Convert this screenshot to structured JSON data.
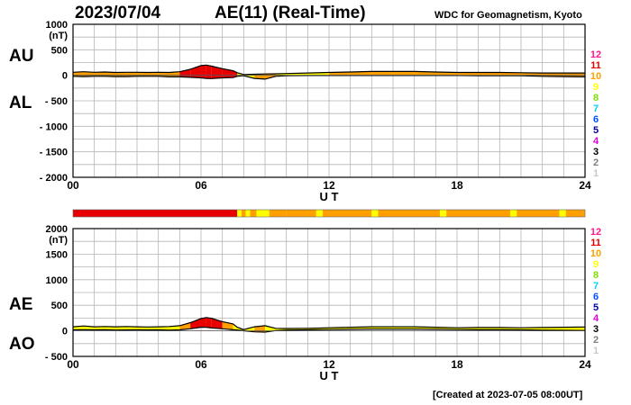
{
  "header": {
    "date": "2023/07/04",
    "title": "AE(11) (Real-Time)",
    "source": "WDC for Geomagnetism, Kyoto",
    "created": "[Created at 2023-07-05 08:00UT]"
  },
  "legend_levels": [
    {
      "label": "12",
      "color": "#ff1a8c"
    },
    {
      "label": "11",
      "color": "#e80000"
    },
    {
      "label": "10",
      "color": "#ffa000"
    },
    {
      "label": "9",
      "color": "#ffff00"
    },
    {
      "label": "8",
      "color": "#80e000"
    },
    {
      "label": "7",
      "color": "#00d0ff"
    },
    {
      "label": "6",
      "color": "#0050ff"
    },
    {
      "label": "5",
      "color": "#0000a0"
    },
    {
      "label": "4",
      "color": "#e000e0"
    },
    {
      "label": "3",
      "color": "#000000"
    },
    {
      "label": "2",
      "color": "#808080"
    },
    {
      "label": "1",
      "color": "#c8c8c8"
    }
  ],
  "chart_data": [
    {
      "type": "area",
      "panel": "AU/AL",
      "labels": {
        "upper": "AU",
        "lower": "AL"
      },
      "xlabel": "U T",
      "unit_label": "(nT)",
      "xlim": [
        0,
        24
      ],
      "ylim": [
        -2000,
        1000
      ],
      "x_ticks": [
        "00",
        "06",
        "12",
        "18",
        "24"
      ],
      "y_ticks": [
        "1000",
        "500",
        "0",
        "- 500",
        "- 1000",
        "- 1500",
        "- 2000"
      ],
      "grid": true,
      "hours": [
        0,
        0.5,
        1,
        1.5,
        2,
        2.5,
        3,
        3.5,
        4,
        4.5,
        5,
        5.5,
        6,
        6.25,
        6.5,
        7,
        7.5,
        7.7,
        8,
        8.5,
        9,
        9.5,
        10,
        11,
        12,
        13,
        14,
        15,
        16,
        17,
        18,
        19,
        20,
        21,
        22,
        23,
        24
      ],
      "series": [
        {
          "name": "AU",
          "values": [
            60,
            70,
            60,
            65,
            55,
            60,
            60,
            55,
            60,
            55,
            70,
            120,
            190,
            200,
            180,
            130,
            90,
            50,
            15,
            20,
            25,
            30,
            35,
            45,
            55,
            65,
            75,
            75,
            75,
            65,
            55,
            55,
            55,
            50,
            45,
            45,
            45
          ]
        },
        {
          "name": "AL",
          "values": [
            -20,
            -25,
            -20,
            -20,
            -25,
            -25,
            -20,
            -20,
            -20,
            -30,
            -30,
            -40,
            -50,
            -60,
            -65,
            -50,
            -45,
            -20,
            -10,
            -60,
            -75,
            -20,
            -10,
            -5,
            -5,
            -5,
            -5,
            -5,
            -5,
            -5,
            -5,
            -10,
            -10,
            -10,
            -20,
            -25,
            -30
          ]
        }
      ]
    },
    {
      "type": "area",
      "panel": "AE/AO",
      "labels": {
        "upper": "AE",
        "lower": "AO"
      },
      "xlabel": "U T",
      "unit_label": "(nT)",
      "xlim": [
        0,
        24
      ],
      "ylim": [
        -500,
        2000
      ],
      "x_ticks": [
        "00",
        "06",
        "12",
        "18",
        "24"
      ],
      "y_ticks": [
        "2000",
        "1500",
        "1000",
        "500",
        "0",
        "- 500"
      ],
      "grid": true,
      "hours": [
        0,
        0.5,
        1,
        1.5,
        2,
        2.5,
        3,
        3.5,
        4,
        4.5,
        5,
        5.5,
        6,
        6.25,
        6.5,
        7,
        7.5,
        7.7,
        8,
        8.5,
        9,
        9.5,
        10,
        11,
        12,
        13,
        14,
        15,
        16,
        17,
        18,
        19,
        20,
        21,
        22,
        23,
        24
      ],
      "series": [
        {
          "name": "AE",
          "values": [
            80,
            95,
            80,
            85,
            80,
            85,
            80,
            75,
            80,
            85,
            100,
            160,
            240,
            260,
            245,
            180,
            135,
            70,
            25,
            80,
            100,
            50,
            45,
            50,
            60,
            70,
            80,
            80,
            80,
            70,
            60,
            65,
            65,
            60,
            65,
            70,
            75
          ]
        },
        {
          "name": "AO",
          "values": [
            20,
            22,
            20,
            22,
            15,
            18,
            20,
            18,
            20,
            12,
            20,
            40,
            70,
            70,
            57,
            40,
            22,
            15,
            2,
            -20,
            -25,
            5,
            12,
            20,
            25,
            30,
            35,
            35,
            35,
            30,
            25,
            22,
            22,
            20,
            12,
            10,
            7
          ]
        }
      ]
    }
  ],
  "activity_strip": {
    "hours": [
      0,
      7.7,
      7.9,
      8.1,
      8.3,
      8.6,
      9.2,
      10,
      11.4,
      11.7,
      14,
      14.3,
      17.2,
      17.5,
      20.5,
      20.8,
      22.8,
      23.1,
      24
    ],
    "levels": [
      "11",
      "9",
      "10",
      "9",
      "10",
      "9",
      "10",
      "10",
      "9",
      "10",
      "9",
      "10",
      "9",
      "10",
      "9",
      "10",
      "9",
      "10"
    ]
  }
}
